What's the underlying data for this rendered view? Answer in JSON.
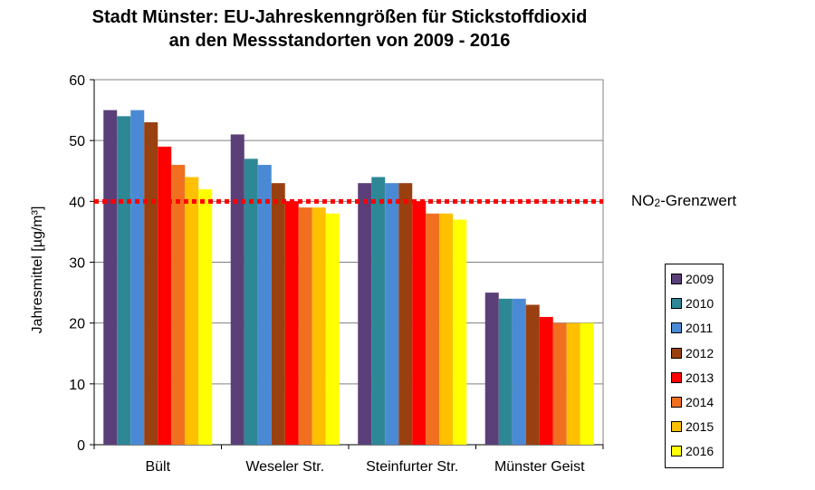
{
  "title_line1": "Stadt Münster: EU-Jahreskenngrößen für Stickstoffdioxid",
  "title_line2": "an den Messstandorten von 2009 - 2016",
  "limit_label_main": "NO",
  "limit_label_sub": "2",
  "limit_label_rest": "-Grenzwert",
  "chart_data": {
    "type": "bar",
    "title": "Stadt Münster: EU-Jahreskenngrößen für Stickstoffdioxid an den Messstandorten von 2009 - 2016",
    "xlabel": "",
    "ylabel": "Jahresmittel [µg/m³]",
    "ylim": [
      0,
      60
    ],
    "yticks": [
      0,
      10,
      20,
      30,
      40,
      50,
      60
    ],
    "grid": true,
    "legend_position": "right",
    "categories": [
      "Bült",
      "Weseler Str.",
      "Steinfurter Str.",
      "Münster Geist"
    ],
    "series": [
      {
        "name": "2009",
        "color": "#5a3f78",
        "values": [
          55,
          51,
          43,
          25
        ]
      },
      {
        "name": "2010",
        "color": "#2e8795",
        "values": [
          54,
          47,
          44,
          24
        ]
      },
      {
        "name": "2011",
        "color": "#4a8ad4",
        "values": [
          55,
          46,
          43,
          24
        ]
      },
      {
        "name": "2012",
        "color": "#994010",
        "values": [
          53,
          43,
          43,
          23
        ]
      },
      {
        "name": "2013",
        "color": "#ff0000",
        "values": [
          49,
          40,
          40,
          21
        ]
      },
      {
        "name": "2014",
        "color": "#f07020",
        "values": [
          46,
          39,
          38,
          20
        ]
      },
      {
        "name": "2015",
        "color": "#ffc000",
        "values": [
          44,
          39,
          38,
          20
        ]
      },
      {
        "name": "2016",
        "color": "#ffff00",
        "values": [
          42,
          38,
          37,
          20
        ]
      }
    ],
    "reference_line": {
      "value": 40,
      "label": "NO2-Grenzwert",
      "color": "#ff0000",
      "style": "dotted"
    }
  }
}
